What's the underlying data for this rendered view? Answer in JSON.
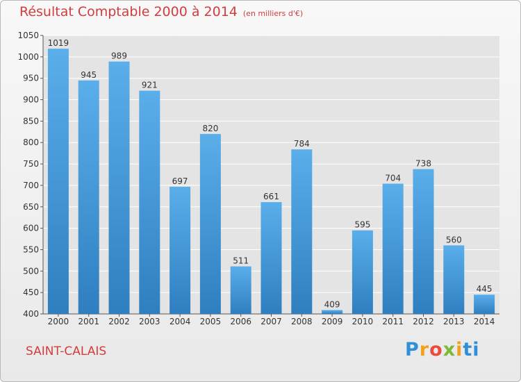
{
  "header": {
    "title": "Résultat Comptable 2000 à 2014",
    "subtitle": "(en milliers d'€)"
  },
  "footer": {
    "city": "SAINT-CALAIS",
    "logo_text": "Proxiti"
  },
  "colors": {
    "bar_top": "#5aaeea",
    "bar_bottom": "#2f7fc0",
    "title": "#d43c3c",
    "grid": "#ffffff",
    "plot_bg": "#e4e4e4"
  },
  "chart_data": {
    "type": "bar",
    "title": "Résultat Comptable 2000 à 2014",
    "subtitle": "(en milliers d'€)",
    "categories": [
      "2000",
      "2001",
      "2002",
      "2003",
      "2004",
      "2005",
      "2006",
      "2007",
      "2008",
      "2009",
      "2010",
      "2011",
      "2012",
      "2013",
      "2014"
    ],
    "values": [
      1019,
      945,
      989,
      921,
      697,
      820,
      511,
      661,
      784,
      409,
      595,
      704,
      738,
      560,
      445
    ],
    "ylim": [
      400,
      1050
    ],
    "yticks": [
      400,
      450,
      500,
      550,
      600,
      650,
      700,
      750,
      800,
      850,
      900,
      950,
      1000,
      1050
    ],
    "grid": true,
    "data_labels": true
  }
}
